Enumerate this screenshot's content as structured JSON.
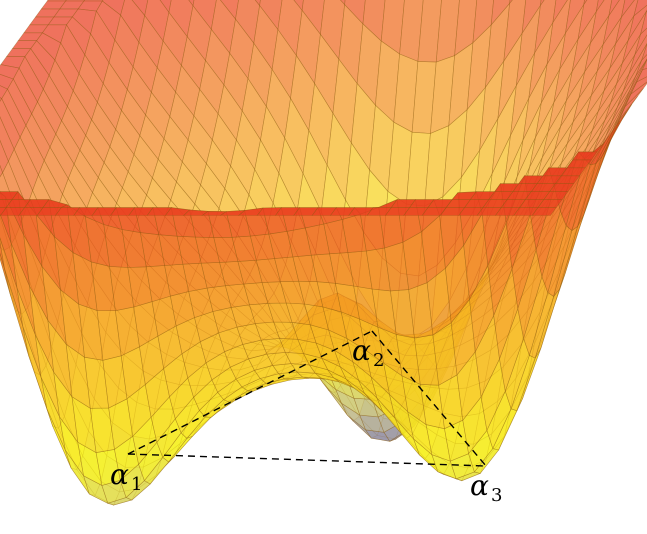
{
  "labels": {
    "alpha1": {
      "symbol": "α",
      "sub": "1"
    },
    "alpha2": {
      "symbol": "α",
      "sub": "2"
    },
    "alpha3": {
      "symbol": "α",
      "sub": "3"
    }
  },
  "colors": {
    "high": "#e8321e",
    "mid_high": "#f5a623",
    "mid": "#f7f21c",
    "low": "#c9c38a",
    "min": "#2a2ad8",
    "mesh": "#8a5a10",
    "dash": "#000000"
  },
  "surface": {
    "description_terms": [
      "potential-energy-surface",
      "three-minima"
    ],
    "minima": [
      "alpha1",
      "alpha2",
      "alpha3"
    ]
  }
}
